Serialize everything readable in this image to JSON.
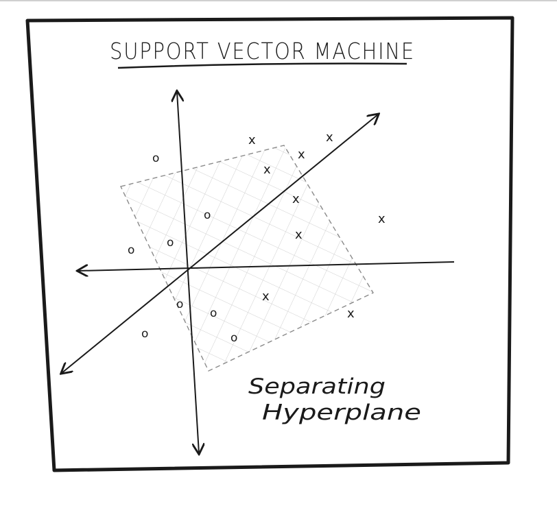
{
  "title": "SUPPORT VECTOR MACHINE",
  "caption": {
    "line1": "Separating",
    "line2": "Hyperplane"
  },
  "markers": {
    "x_symbol": "x",
    "o_symbol": "o"
  },
  "colors": {
    "ink": "#1a1a1a",
    "margin_fill": "#e9e9e9",
    "paper": "#ffffff",
    "frame": "#1a1a1a"
  }
}
